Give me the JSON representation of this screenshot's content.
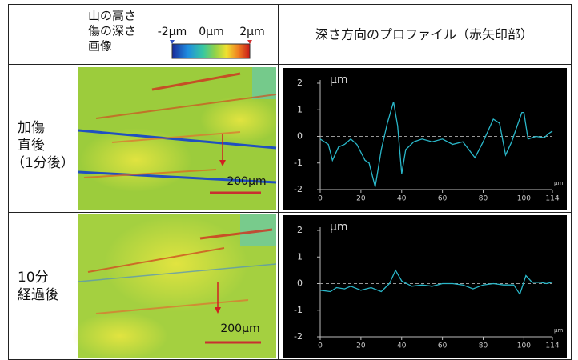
{
  "table": {
    "header": {
      "image_label": [
        "山の高さ",
        "傷の深さ",
        "画像"
      ],
      "colorbar_labels": [
        "-2μm",
        "0μm",
        "2μm"
      ],
      "profile_label": "深さ方向のプロファイル（赤矢印部）"
    },
    "rows": [
      {
        "label": [
          "加傷",
          "直後",
          "（1分後）"
        ],
        "scale": "200μm"
      },
      {
        "label": [
          "10分",
          "経過後"
        ],
        "scale": "200μm"
      }
    ]
  },
  "chart_data": [
    {
      "type": "line",
      "y_label": "μm",
      "x_unit": "μm",
      "color": "#2ab7c9",
      "xlim": [
        0,
        114
      ],
      "xticks": [
        0,
        20,
        40,
        60,
        80,
        100,
        114
      ],
      "ylim": [
        -2,
        2
      ],
      "yticks": [
        -2,
        -1,
        0,
        1,
        2
      ],
      "reference_line": 0,
      "x": [
        0,
        4,
        6,
        9,
        12,
        15,
        18,
        22,
        24,
        27,
        30,
        33,
        36,
        38,
        40,
        42,
        46,
        50,
        55,
        60,
        65,
        70,
        76,
        80,
        85,
        88,
        91,
        94,
        99,
        100,
        102,
        106,
        110,
        112,
        114
      ],
      "values": [
        -0.1,
        -0.3,
        -0.9,
        -0.4,
        -0.3,
        -0.1,
        -0.3,
        -0.9,
        -1.0,
        -1.9,
        -0.5,
        0.5,
        1.3,
        0.4,
        -1.4,
        -0.5,
        -0.2,
        -0.1,
        -0.2,
        -0.1,
        -0.3,
        -0.2,
        -0.8,
        -0.2,
        0.65,
        0.5,
        -0.7,
        -0.2,
        0.9,
        0.9,
        -0.1,
        0.0,
        -0.05,
        0.1,
        0.2
      ]
    },
    {
      "type": "line",
      "y_label": "μm",
      "x_unit": "μm",
      "color": "#2ab7c9",
      "xlim": [
        0,
        114
      ],
      "xticks": [
        0,
        20,
        40,
        60,
        80,
        100,
        114
      ],
      "ylim": [
        -2,
        2
      ],
      "yticks": [
        -2,
        -1,
        0,
        1,
        2
      ],
      "reference_line": 0,
      "x": [
        0,
        5,
        8,
        12,
        15,
        20,
        25,
        30,
        34,
        37,
        40,
        45,
        50,
        55,
        60,
        65,
        70,
        75,
        80,
        85,
        90,
        95,
        98,
        101,
        104,
        108,
        111,
        114
      ],
      "values": [
        -0.25,
        -0.3,
        -0.15,
        -0.2,
        -0.1,
        -0.25,
        -0.15,
        -0.3,
        0.0,
        0.5,
        0.1,
        -0.1,
        -0.05,
        -0.1,
        0.0,
        0.0,
        -0.05,
        -0.2,
        -0.05,
        0.0,
        -0.05,
        -0.05,
        -0.4,
        0.3,
        0.05,
        0.05,
        0.0,
        0.05
      ]
    }
  ]
}
